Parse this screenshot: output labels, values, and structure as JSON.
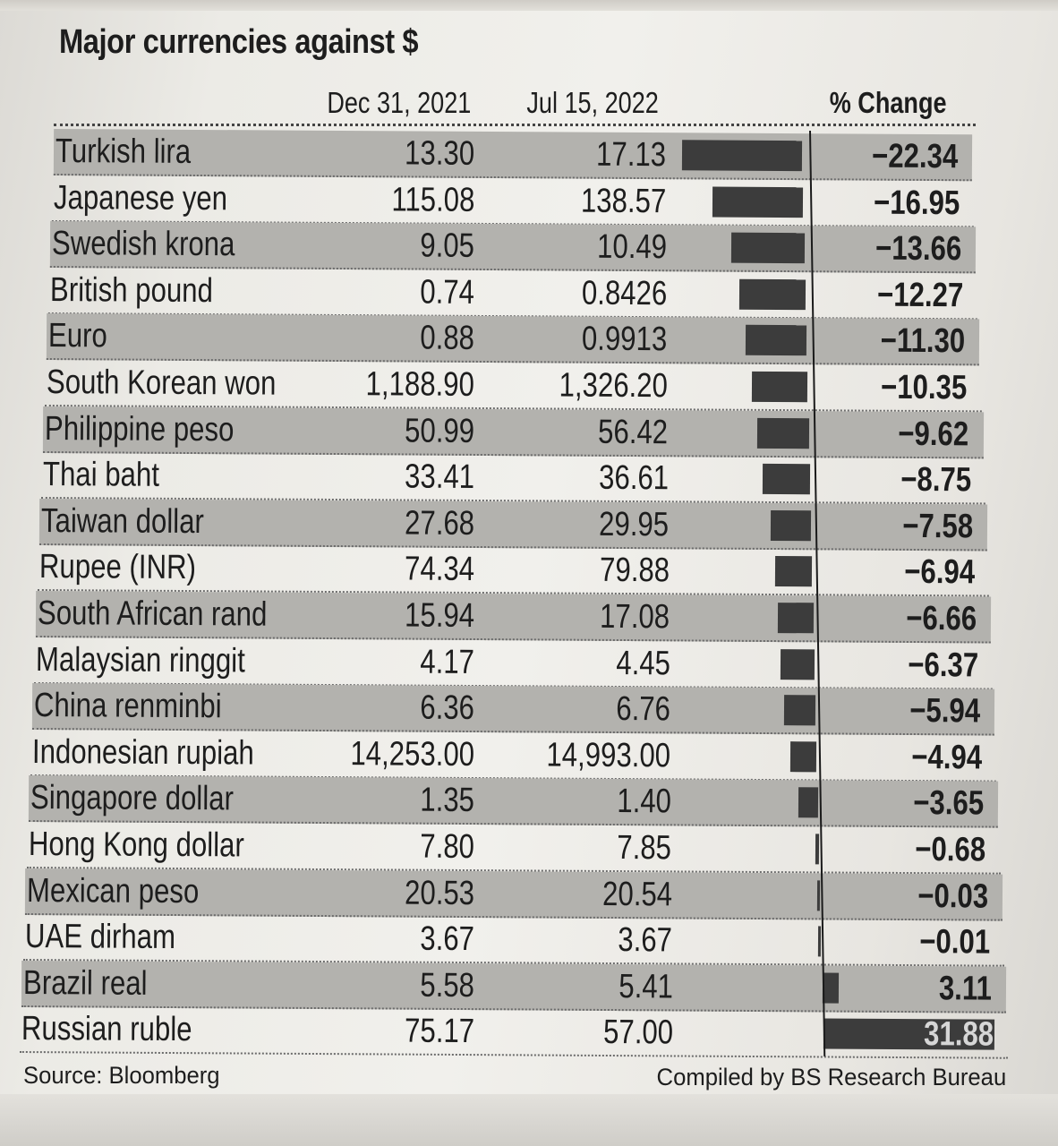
{
  "chart_data": {
    "type": "table",
    "title": "Major currencies against $",
    "columns": [
      "Dec 31, 2021",
      "Jul 15, 2022",
      "% Change"
    ],
    "rows": [
      {
        "currency": "Turkish lira",
        "dec31_2021": "13.30",
        "jul15_2022": "17.13",
        "pct_change": -22.34
      },
      {
        "currency": "Japanese yen",
        "dec31_2021": "115.08",
        "jul15_2022": "138.57",
        "pct_change": -16.95
      },
      {
        "currency": "Swedish krona",
        "dec31_2021": "9.05",
        "jul15_2022": "10.49",
        "pct_change": -13.66
      },
      {
        "currency": "British pound",
        "dec31_2021": "0.74",
        "jul15_2022": "0.8426",
        "pct_change": -12.27
      },
      {
        "currency": "Euro",
        "dec31_2021": "0.88",
        "jul15_2022": "0.9913",
        "pct_change": -11.3
      },
      {
        "currency": "South Korean won",
        "dec31_2021": "1,188.90",
        "jul15_2022": "1,326.20",
        "pct_change": -10.35
      },
      {
        "currency": "Philippine peso",
        "dec31_2021": "50.99",
        "jul15_2022": "56.42",
        "pct_change": -9.62
      },
      {
        "currency": "Thai baht",
        "dec31_2021": "33.41",
        "jul15_2022": "36.61",
        "pct_change": -8.75
      },
      {
        "currency": "Taiwan dollar",
        "dec31_2021": "27.68",
        "jul15_2022": "29.95",
        "pct_change": -7.58
      },
      {
        "currency": "Rupee (INR)",
        "dec31_2021": "74.34",
        "jul15_2022": "79.88",
        "pct_change": -6.94
      },
      {
        "currency": "South African rand",
        "dec31_2021": "15.94",
        "jul15_2022": "17.08",
        "pct_change": -6.66
      },
      {
        "currency": "Malaysian ringgit",
        "dec31_2021": "4.17",
        "jul15_2022": "4.45",
        "pct_change": -6.37
      },
      {
        "currency": "China renminbi",
        "dec31_2021": "6.36",
        "jul15_2022": "6.76",
        "pct_change": -5.94
      },
      {
        "currency": "Indonesian rupiah",
        "dec31_2021": "14,253.00",
        "jul15_2022": "14,993.00",
        "pct_change": -4.94
      },
      {
        "currency": "Singapore dollar",
        "dec31_2021": "1.35",
        "jul15_2022": "1.40",
        "pct_change": -3.65
      },
      {
        "currency": "Hong Kong dollar",
        "dec31_2021": "7.80",
        "jul15_2022": "7.85",
        "pct_change": -0.68
      },
      {
        "currency": "Mexican peso",
        "dec31_2021": "20.53",
        "jul15_2022": "20.54",
        "pct_change": -0.03
      },
      {
        "currency": "UAE dirham",
        "dec31_2021": "3.67",
        "jul15_2022": "3.67",
        "pct_change": -0.01
      },
      {
        "currency": "Brazil real",
        "dec31_2021": "5.58",
        "jul15_2022": "5.41",
        "pct_change": 3.11
      },
      {
        "currency": "Russian ruble",
        "dec31_2021": "75.17",
        "jul15_2022": "57.00",
        "pct_change": 31.88
      }
    ],
    "bar_series": "% Change",
    "source": "Source: Bloomberg",
    "credit": "Compiled by BS Research Bureau"
  },
  "colors": {
    "bar": "#3c3c3c",
    "shaded_row": "#b3b2ae",
    "text": "#1d1d1d",
    "paper": "#efeee9"
  }
}
